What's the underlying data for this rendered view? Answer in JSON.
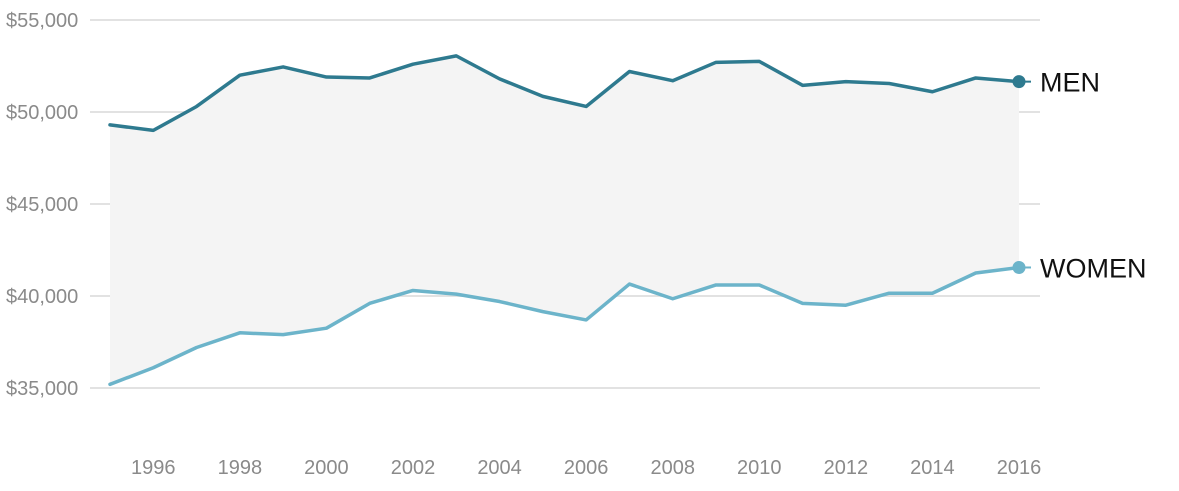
{
  "chart_data": {
    "type": "line",
    "x": [
      1995,
      1996,
      1997,
      1998,
      1999,
      2000,
      2001,
      2002,
      2003,
      2004,
      2005,
      2006,
      2007,
      2008,
      2009,
      2010,
      2011,
      2012,
      2013,
      2014,
      2015,
      2016
    ],
    "series": [
      {
        "name": "MEN",
        "color": "#2e7a8f",
        "values": [
          49300,
          49000,
          50300,
          52000,
          52450,
          51900,
          51850,
          52600,
          53050,
          51800,
          50850,
          50300,
          52200,
          51700,
          52700,
          52750,
          51450,
          51650,
          51550,
          51100,
          51850,
          51650
        ]
      },
      {
        "name": "WOMEN",
        "color": "#6cb4ca",
        "values": [
          35200,
          36100,
          37200,
          38000,
          37900,
          38250,
          39600,
          40300,
          40100,
          39700,
          39150,
          38700,
          40650,
          39850,
          40600,
          40600,
          39600,
          39500,
          40150,
          40150,
          41250,
          41550
        ]
      }
    ],
    "y_ticks": [
      "$55,000",
      "$50,000",
      "$45,000",
      "$40,000",
      "$35,000"
    ],
    "y_tick_values": [
      55000,
      50000,
      45000,
      40000,
      35000
    ],
    "x_ticks": [
      "1996",
      "1998",
      "2000",
      "2002",
      "2004",
      "2006",
      "2008",
      "2010",
      "2012",
      "2014",
      "2016"
    ],
    "x_tick_values": [
      1996,
      1998,
      2000,
      2002,
      2004,
      2006,
      2008,
      2010,
      2012,
      2014,
      2016
    ],
    "ylim": [
      35000,
      55000
    ],
    "xlim": [
      1995,
      2016
    ],
    "grid": true,
    "gap_fill_color": "#f4f4f4"
  }
}
